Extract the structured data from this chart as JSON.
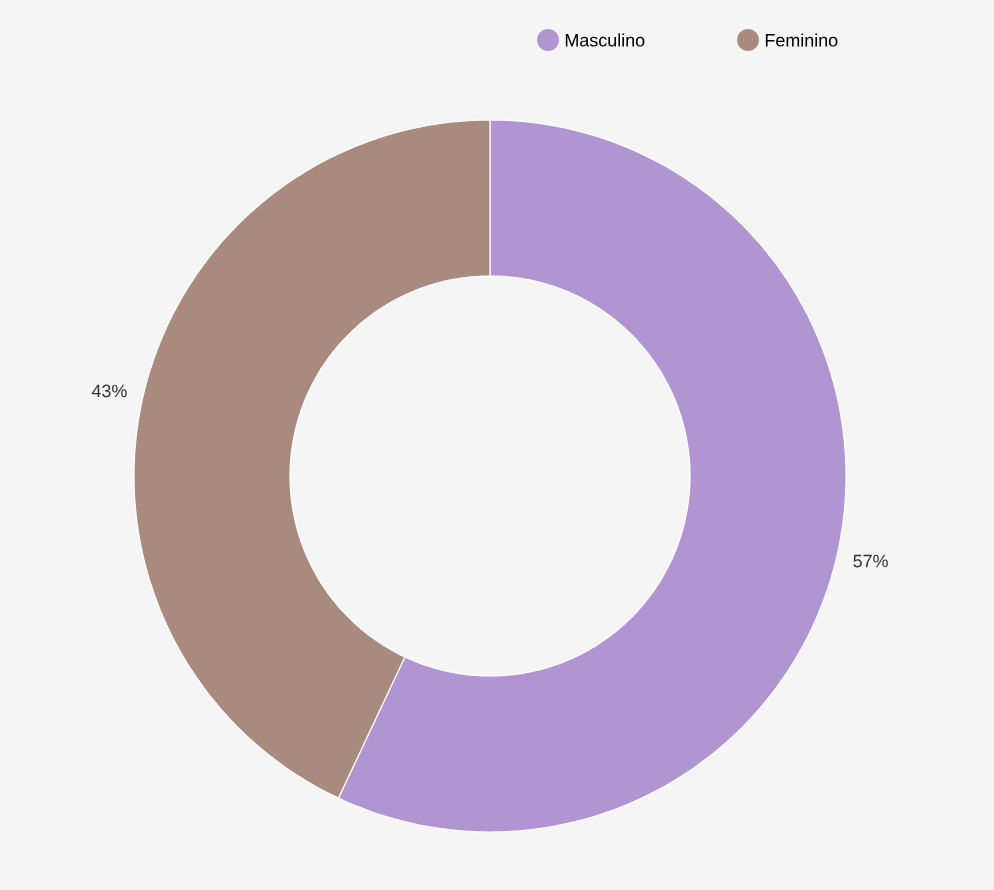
{
  "chart_data": {
    "type": "donut",
    "categories": [
      "Masculino",
      "Feminino"
    ],
    "values": [
      57,
      43
    ],
    "colors": [
      "#b194d2",
      "#a88a7e"
    ],
    "value_labels": [
      "57%",
      "43%"
    ],
    "legend": "top right"
  }
}
